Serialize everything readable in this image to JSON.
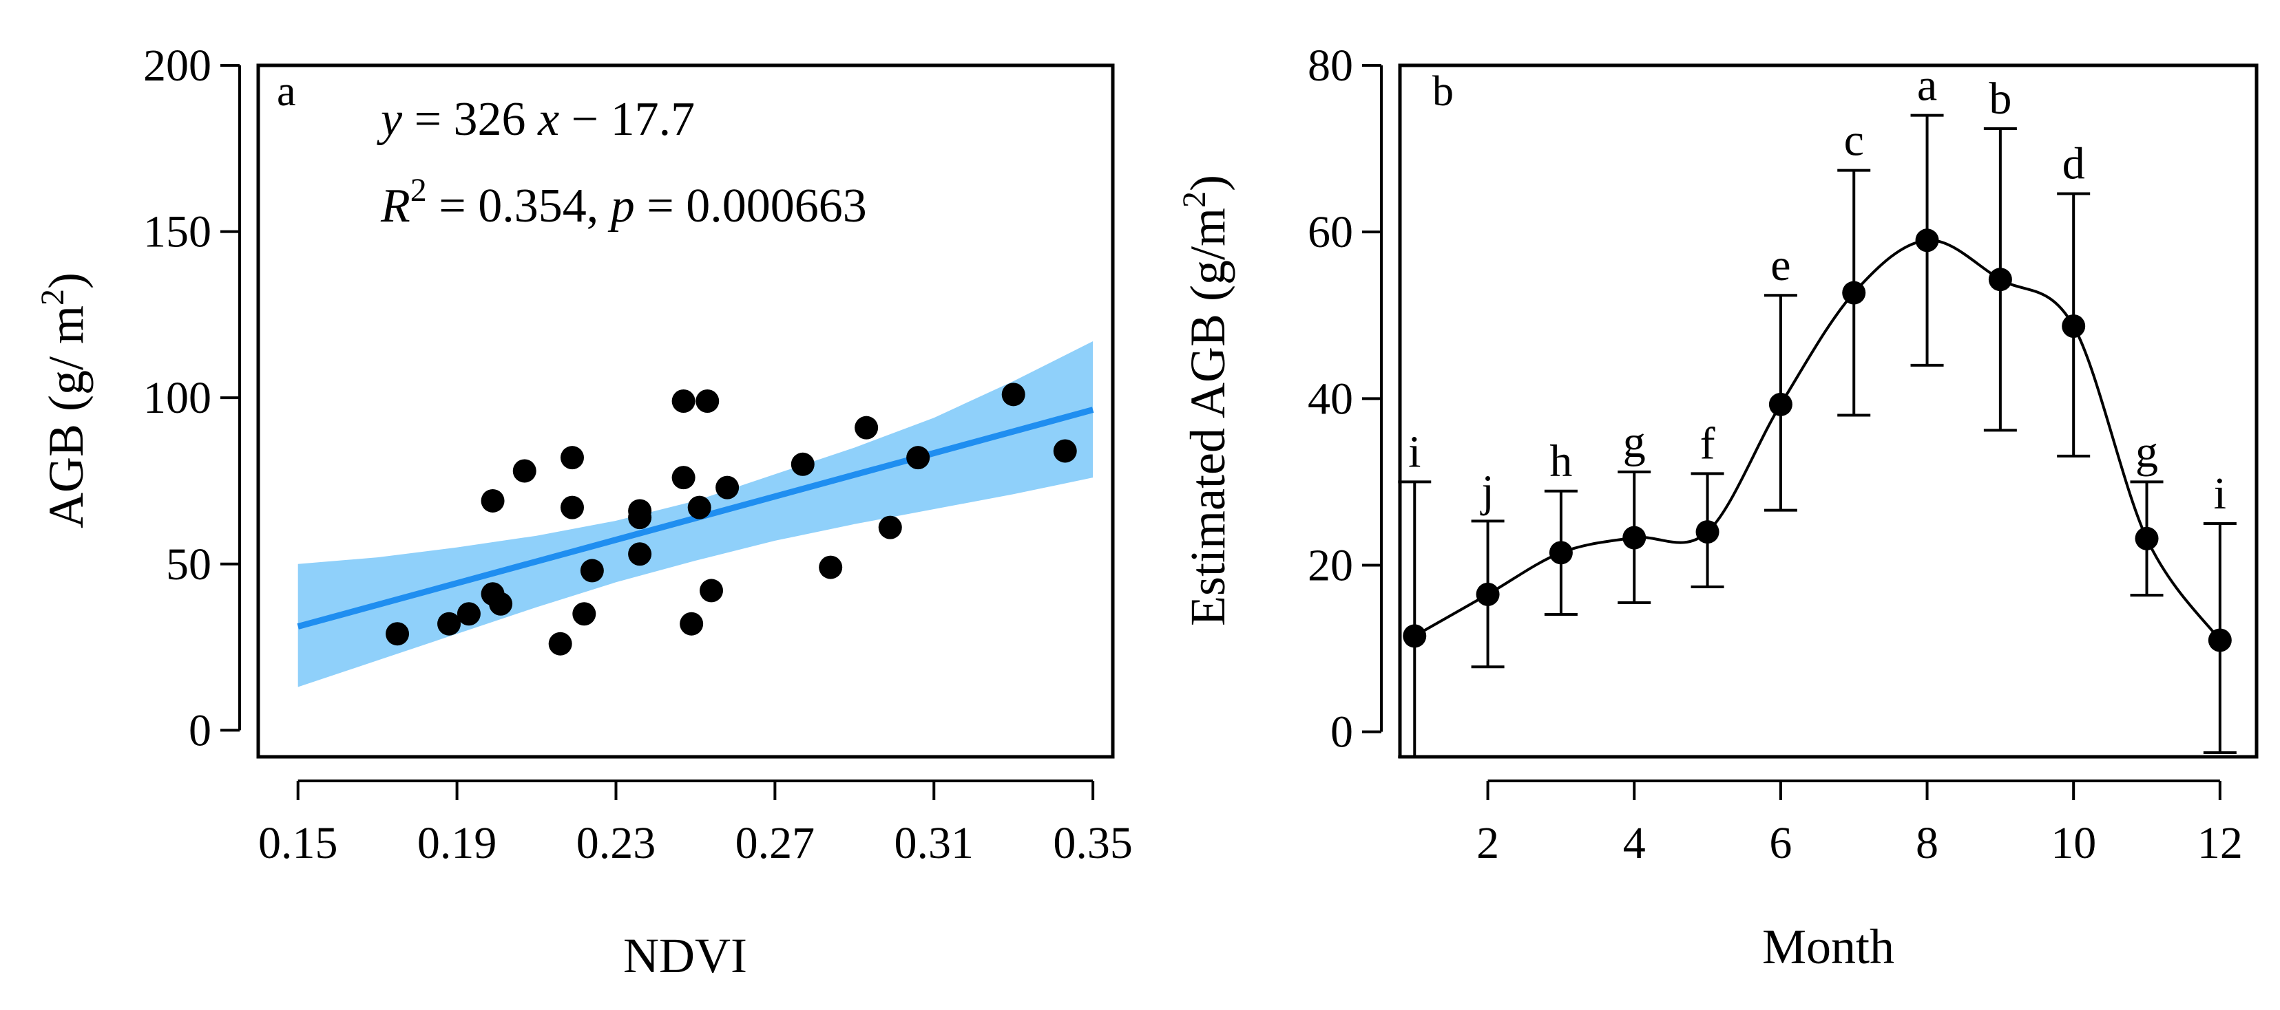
{
  "chart_data": [
    {
      "type": "scatter",
      "panel_label": "a",
      "xlabel": "NDVI",
      "ylabel_main": "AGB (g/ m",
      "ylabel_sup": "2",
      "ylabel_close": ")",
      "xlim": [
        0.14,
        0.355
      ],
      "ylim": [
        -8,
        200
      ],
      "xticks": [
        0.15,
        0.19,
        0.23,
        0.27,
        0.31,
        0.35
      ],
      "xtick_labels": [
        "0.15",
        "0.19",
        "0.23",
        "0.27",
        "0.31",
        "0.35"
      ],
      "yticks": [
        0,
        50,
        100,
        150,
        200
      ],
      "ytick_labels": [
        "0",
        "50",
        "100",
        "150",
        "200"
      ],
      "equation": {
        "line1": {
          "y": "y",
          "eq": " = 326 ",
          "x": "x",
          "rest": " − 17.7"
        },
        "line2": {
          "r": "R",
          "sup": "2",
          "mid": " = 0.354,  ",
          "p": "p",
          "rest": "  = 0.000663"
        }
      },
      "fit": {
        "slope": 326,
        "intercept": -17.7,
        "x_range": [
          0.15,
          0.35
        ]
      },
      "ci_band": {
        "x": [
          0.15,
          0.17,
          0.19,
          0.21,
          0.23,
          0.25,
          0.27,
          0.29,
          0.31,
          0.33,
          0.35
        ],
        "lower": [
          13,
          21,
          29,
          37,
          44.5,
          51,
          57,
          62,
          66.5,
          71,
          76
        ],
        "upper": [
          50,
          52,
          55,
          58.5,
          63,
          69,
          77,
          85,
          94,
          105,
          117
        ]
      },
      "points": [
        {
          "x": 0.175,
          "y": 29
        },
        {
          "x": 0.188,
          "y": 32
        },
        {
          "x": 0.193,
          "y": 35
        },
        {
          "x": 0.199,
          "y": 69
        },
        {
          "x": 0.199,
          "y": 41
        },
        {
          "x": 0.201,
          "y": 38
        },
        {
          "x": 0.207,
          "y": 78
        },
        {
          "x": 0.216,
          "y": 26
        },
        {
          "x": 0.219,
          "y": 67
        },
        {
          "x": 0.219,
          "y": 82
        },
        {
          "x": 0.222,
          "y": 35
        },
        {
          "x": 0.224,
          "y": 48
        },
        {
          "x": 0.236,
          "y": 53
        },
        {
          "x": 0.236,
          "y": 64
        },
        {
          "x": 0.236,
          "y": 66
        },
        {
          "x": 0.247,
          "y": 99
        },
        {
          "x": 0.247,
          "y": 76
        },
        {
          "x": 0.249,
          "y": 32
        },
        {
          "x": 0.251,
          "y": 67
        },
        {
          "x": 0.253,
          "y": 99
        },
        {
          "x": 0.254,
          "y": 42
        },
        {
          "x": 0.258,
          "y": 73
        },
        {
          "x": 0.277,
          "y": 80
        },
        {
          "x": 0.284,
          "y": 49
        },
        {
          "x": 0.293,
          "y": 91
        },
        {
          "x": 0.299,
          "y": 61
        },
        {
          "x": 0.306,
          "y": 82
        },
        {
          "x": 0.33,
          "y": 101
        },
        {
          "x": 0.343,
          "y": 84
        }
      ],
      "colors": {
        "band": "#8fd0fa",
        "line": "#1f8ef0",
        "points": "#000000"
      }
    },
    {
      "type": "line",
      "panel_label": "b",
      "xlabel": "Month",
      "ylabel_main": "Estimated AGB (g/m",
      "ylabel_sup": "2",
      "ylabel_close": ")",
      "xlim": [
        0.8,
        12.5
      ],
      "ylim": [
        -3,
        80
      ],
      "xticks": [
        2,
        4,
        6,
        8,
        10,
        12
      ],
      "xtick_labels": [
        "2",
        "4",
        "6",
        "8",
        "10",
        "12"
      ],
      "yticks": [
        0,
        20,
        40,
        60,
        80
      ],
      "ytick_labels": [
        "0",
        "20",
        "40",
        "60",
        "80"
      ],
      "months": [
        1,
        2,
        3,
        4,
        5,
        6,
        7,
        8,
        9,
        10,
        11,
        12
      ],
      "means": [
        11.5,
        16.5,
        21.5,
        23.3,
        24,
        39.3,
        52.7,
        59,
        54.3,
        48.7,
        23.2,
        11
      ],
      "err_upper": [
        30,
        25.3,
        28.9,
        31.2,
        31,
        52.4,
        67.4,
        74,
        72.4,
        64.6,
        30,
        25
      ],
      "err_lower": [
        -3,
        7.8,
        14.1,
        15.5,
        17.4,
        26.6,
        38,
        44,
        36.2,
        33.1,
        16.4,
        -2.5
      ],
      "letters": [
        "i",
        "j",
        "h",
        "g",
        "f",
        "e",
        "c",
        "a",
        "b",
        "d",
        "g",
        "i"
      ],
      "colors": {
        "line": "#000000",
        "points": "#000000"
      }
    }
  ]
}
